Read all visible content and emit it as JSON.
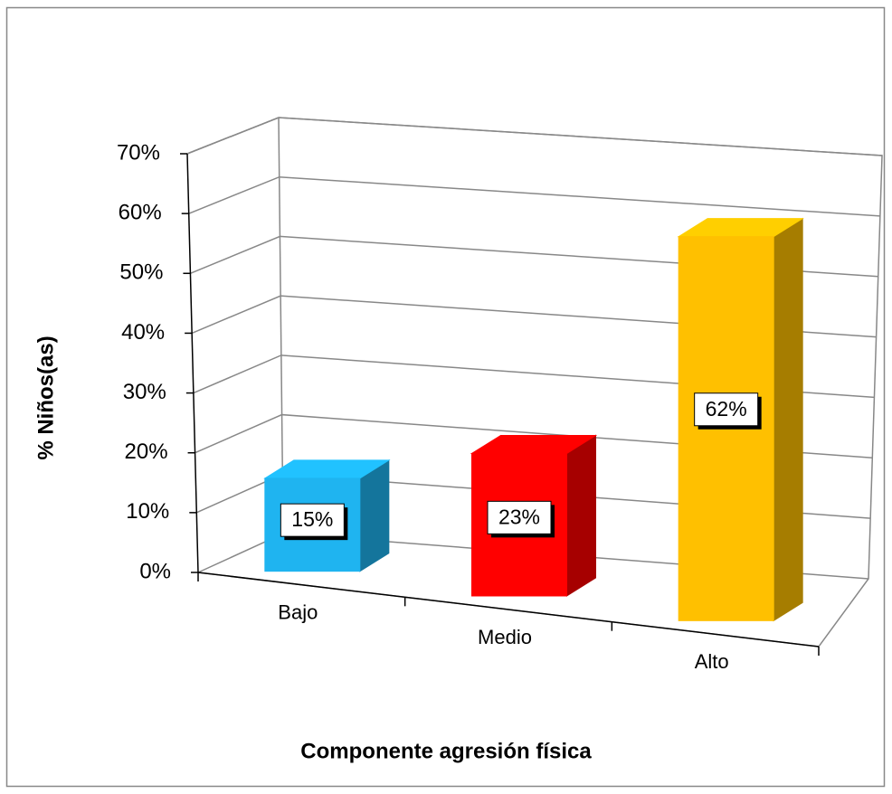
{
  "chart_data": {
    "type": "bar3d",
    "categories": [
      "Bajo",
      "Medio",
      "Alto"
    ],
    "values": [
      15,
      23,
      62
    ],
    "value_labels": [
      "15%",
      "23%",
      "62%"
    ],
    "colors": [
      "#1fb4f0",
      "#ff0000",
      "#ffc000"
    ],
    "ylim": [
      0,
      70
    ],
    "yticks": [
      {
        "value": 0,
        "label": "0%"
      },
      {
        "value": 10,
        "label": "10%"
      },
      {
        "value": 20,
        "label": "20%"
      },
      {
        "value": 30,
        "label": "30%"
      },
      {
        "value": 40,
        "label": "40%"
      },
      {
        "value": 50,
        "label": "50%"
      },
      {
        "value": 60,
        "label": "60%"
      },
      {
        "value": 70,
        "label": "70%"
      }
    ],
    "xlabel": "Componente agresión física",
    "ylabel": "% Niños(as)",
    "grid": true
  }
}
